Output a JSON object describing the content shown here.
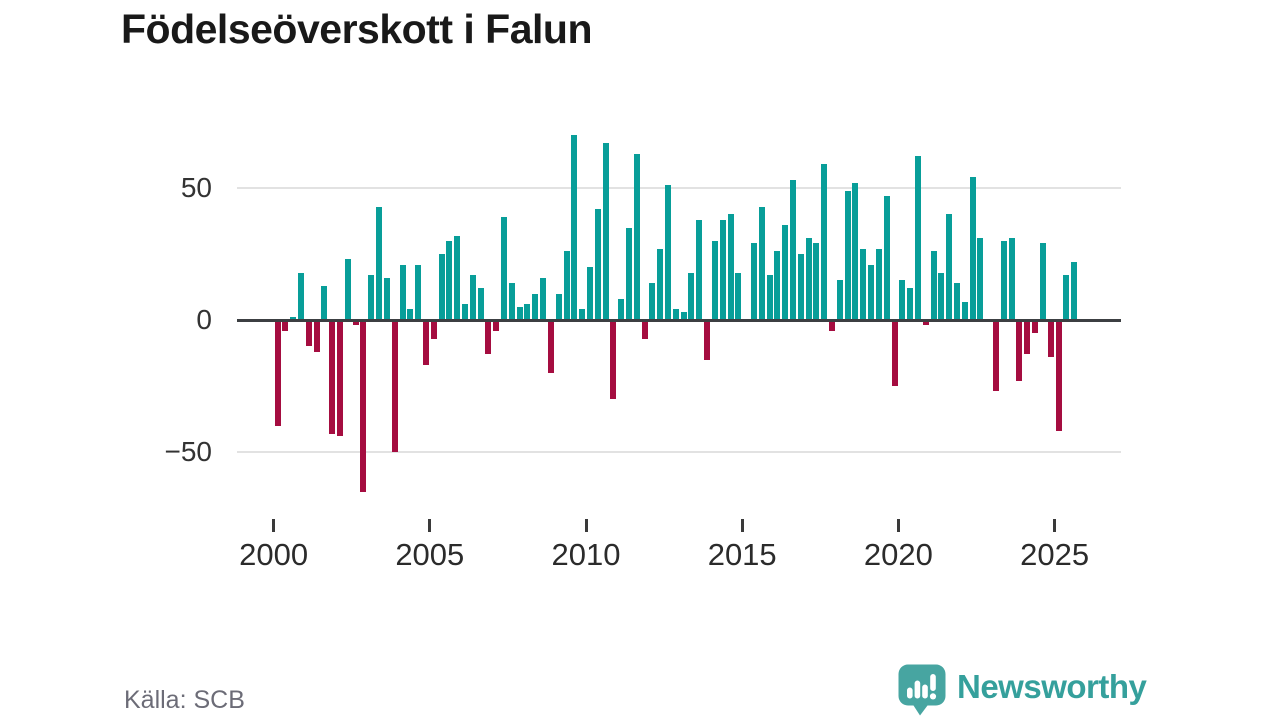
{
  "header": {
    "title": "Födelseöverskott i Falun"
  },
  "footer": {
    "source_label": "Källa: SCB",
    "brand": "Newsworthy"
  },
  "colors": {
    "positive_bar": "#089e99",
    "negative_bar": "#a50d40",
    "axis_line": "#3c3f42",
    "gridline": "#e2e2e2",
    "title_text": "#191919",
    "tick_text": "#2b2b2b",
    "y_tick_text": "#333333",
    "source_text": "#6c6c77",
    "brand_teal": "#35a09c",
    "brand_icon_teal": "#47a5a1",
    "background": "#ffffff"
  },
  "chart_data": {
    "type": "bar",
    "title": "Födelseöverskott i Falun",
    "frequency": "quarterly",
    "start_period": "2000 Q1",
    "end_period": "2025 Q3",
    "values": [
      -40,
      -4,
      1,
      18,
      -10,
      -12,
      13,
      -43,
      -44,
      23,
      -2,
      -65,
      17,
      43,
      16,
      -50,
      21,
      4,
      21,
      -17,
      -7,
      25,
      30,
      32,
      6,
      17,
      12,
      -13,
      -4,
      39,
      14,
      5,
      6,
      10,
      16,
      -20,
      10,
      26,
      70,
      4,
      20,
      42,
      67,
      -30,
      8,
      35,
      63,
      -7,
      14,
      27,
      51,
      4,
      3,
      18,
      38,
      -15,
      30,
      38,
      40,
      18,
      0,
      29,
      43,
      17,
      26,
      36,
      53,
      25,
      31,
      29,
      59,
      -4,
      15,
      49,
      52,
      27,
      21,
      27,
      47,
      -25,
      15,
      12,
      62,
      -2,
      26,
      18,
      40,
      14,
      7,
      54,
      31,
      0,
      -27,
      30,
      31,
      -23,
      -13,
      -5,
      29,
      -14,
      -42,
      17,
      22
    ],
    "positive_color": "#089e99",
    "negative_color": "#a50d40",
    "y_axis": {
      "ticks": [
        {
          "label": "50",
          "value": 50
        },
        {
          "label": "0",
          "value": 0
        },
        {
          "label": "−50",
          "value": -50
        }
      ],
      "range": [
        -70,
        75
      ],
      "grid": true
    },
    "x_axis": {
      "ticks": [
        {
          "label": "2000",
          "year": 2000
        },
        {
          "label": "2005",
          "year": 2005
        },
        {
          "label": "2010",
          "year": 2010
        },
        {
          "label": "2015",
          "year": 2015
        },
        {
          "label": "2020",
          "year": 2020
        },
        {
          "label": "2025",
          "year": 2025
        }
      ]
    },
    "legend": null
  }
}
